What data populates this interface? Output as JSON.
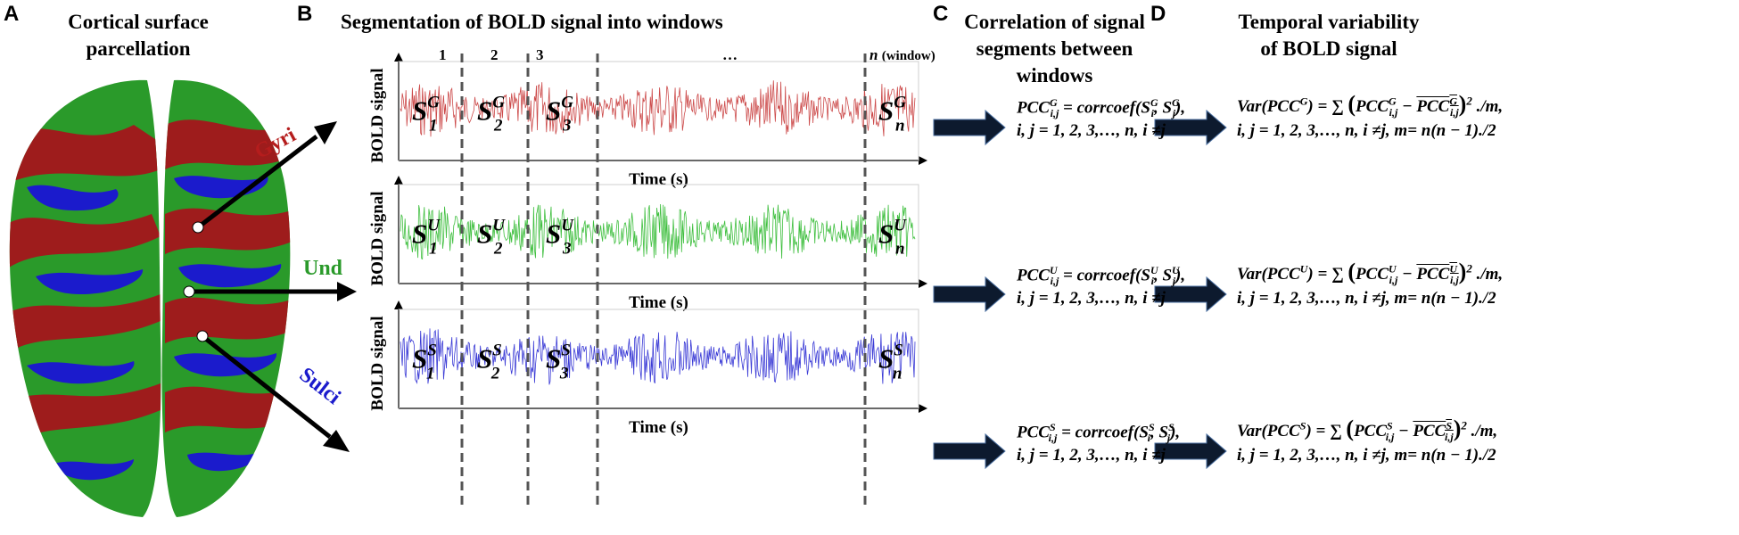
{
  "panels": {
    "a": {
      "letter": "A",
      "title_line1": "Cortical surface",
      "title_line2": "parcellation",
      "labels": {
        "gyri": "Gyri",
        "und": "Und",
        "sulci": "Sulci"
      }
    },
    "b": {
      "letter": "B",
      "title": "Segmentation of BOLD signal into windows",
      "window_labels": [
        "1",
        "2",
        "3",
        "…"
      ],
      "window_n": "n",
      "window_word": "(window)",
      "ylabel": "BOLD signal",
      "xlabel": "Time (s)",
      "segment_letters": [
        "1",
        "2",
        "3",
        "n"
      ],
      "rows": [
        {
          "sup": "G",
          "color": "#cc4a4a"
        },
        {
          "sup": "U",
          "color": "#3fbf3f"
        },
        {
          "sup": "S",
          "color": "#3b3bd6"
        }
      ]
    },
    "c": {
      "letter": "C",
      "title_line1": "Correlation of signal",
      "title_line2": "segments between",
      "title_line3": "windows",
      "indices_line": "i, j = 1, 2, 3,…, n, i ≠j"
    },
    "d": {
      "letter": "D",
      "title_line1": "Temporal variability",
      "title_line2": "of BOLD signal",
      "indices_line": "i, j = 1, 2, 3,…, n, i ≠j, m= n(n − 1)./2"
    }
  },
  "colors": {
    "gyri": "#b51d1d",
    "und": "#2a9a2a",
    "sulci": "#1b1bcc",
    "arrow": "#0d1a2e"
  }
}
